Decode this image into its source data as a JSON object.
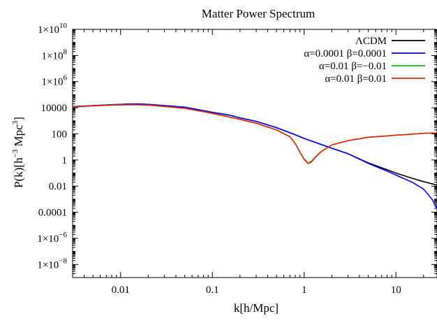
{
  "chart_data": {
    "type": "line",
    "title": "Matter Power Spectrum",
    "xlabel": "k[h/Mpc]",
    "ylabel": {
      "base": "P(k)[h",
      "exp1": "−3",
      "mid": " Mpc",
      "exp2": "3",
      "end": "]"
    },
    "x_scale": "log",
    "y_scale": "log",
    "xlim": [
      0.003,
      28
    ],
    "ylim": [
      1e-09,
      10000000000.0
    ],
    "grid": false,
    "legend_position": "top-right",
    "x_ticks": [
      {
        "value": 0.01,
        "label": "0.01"
      },
      {
        "value": 0.1,
        "label": "0.1"
      },
      {
        "value": 1,
        "label": "1"
      },
      {
        "value": 10,
        "label": "10"
      }
    ],
    "y_ticks": [
      {
        "value": 10000000000.0,
        "mant": "1×10",
        "exp": "10"
      },
      {
        "value": 100000000.0,
        "mant": "1×10",
        "exp": "8"
      },
      {
        "value": 1000000.0,
        "mant": "1×10",
        "exp": "6"
      },
      {
        "value": 10000.0,
        "mant": "10000",
        "exp": ""
      },
      {
        "value": 100,
        "mant": "100",
        "exp": ""
      },
      {
        "value": 1,
        "mant": "1",
        "exp": ""
      },
      {
        "value": 0.01,
        "mant": "0.01",
        "exp": ""
      },
      {
        "value": 0.0001,
        "mant": "0.0001",
        "exp": ""
      },
      {
        "value": 1e-06,
        "mant": "1×10",
        "exp": "−6"
      },
      {
        "value": 1e-08,
        "mant": "1×10",
        "exp": "−8"
      }
    ],
    "series": [
      {
        "name": "ΛCDM",
        "color": "#000000",
        "x": [
          0.003,
          0.005,
          0.008,
          0.012,
          0.015,
          0.02,
          0.03,
          0.05,
          0.08,
          0.1,
          0.15,
          0.2,
          0.3,
          0.5,
          0.8,
          1,
          1.5,
          2,
          3,
          5,
          8,
          10,
          15,
          20,
          28
        ],
        "y": [
          12000,
          14500,
          17000,
          19000,
          19500,
          18000,
          14500,
          11000,
          6000,
          4500,
          2800,
          1700,
          900,
          300,
          85,
          45,
          16,
          8,
          3,
          0.6,
          0.18,
          0.1,
          0.04,
          0.022,
          0.012
        ]
      },
      {
        "name": "α=0.0001 β=0.0001",
        "color": "#0000ff",
        "x": [
          0.003,
          0.005,
          0.008,
          0.012,
          0.015,
          0.02,
          0.03,
          0.05,
          0.08,
          0.1,
          0.15,
          0.2,
          0.3,
          0.5,
          0.8,
          1,
          1.5,
          2,
          3,
          5,
          8,
          10,
          15,
          20,
          25,
          28
        ],
        "y": [
          12000,
          14500,
          17000,
          19000,
          19500,
          18000,
          14500,
          11000,
          6000,
          4500,
          2800,
          1700,
          900,
          300,
          85,
          45,
          16,
          8,
          3,
          0.55,
          0.14,
          0.07,
          0.02,
          0.006,
          0.0009,
          0.00018
        ]
      },
      {
        "name": "α=0.01 β=−0.01",
        "color": "#00cc00",
        "x": [
          0.003,
          0.005,
          0.008,
          0.012,
          0.015,
          0.02,
          0.03,
          0.05,
          0.08,
          0.1,
          0.15,
          0.2,
          0.3,
          0.5,
          0.7,
          0.8,
          0.9,
          1,
          1.1,
          1.2,
          1.3,
          1.5,
          1.8,
          2,
          3,
          5,
          8,
          10,
          15,
          20,
          28
        ],
        "y": [
          11500,
          14000,
          16000,
          17000,
          17000,
          16000,
          12500,
          9000,
          5000,
          3700,
          2000,
          1300,
          650,
          200,
          60,
          18,
          4,
          1.2,
          0.6,
          0.8,
          1.5,
          4,
          9,
          14,
          30,
          55,
          70,
          80,
          95,
          110,
          120
        ]
      },
      {
        "name": "α=0.01 β=0.01",
        "color": "#ee2200",
        "x": [
          0.003,
          0.005,
          0.008,
          0.012,
          0.015,
          0.02,
          0.03,
          0.05,
          0.08,
          0.1,
          0.15,
          0.2,
          0.3,
          0.5,
          0.7,
          0.8,
          0.9,
          1,
          1.1,
          1.2,
          1.3,
          1.5,
          1.8,
          2,
          3,
          5,
          8,
          10,
          15,
          20,
          28
        ],
        "y": [
          11500,
          14000,
          16000,
          17000,
          17000,
          16000,
          12500,
          9000,
          5000,
          3700,
          2000,
          1300,
          650,
          200,
          60,
          18,
          4,
          1.1,
          0.55,
          0.7,
          1.4,
          3.8,
          9,
          14,
          30,
          55,
          70,
          80,
          95,
          110,
          120
        ]
      }
    ]
  }
}
